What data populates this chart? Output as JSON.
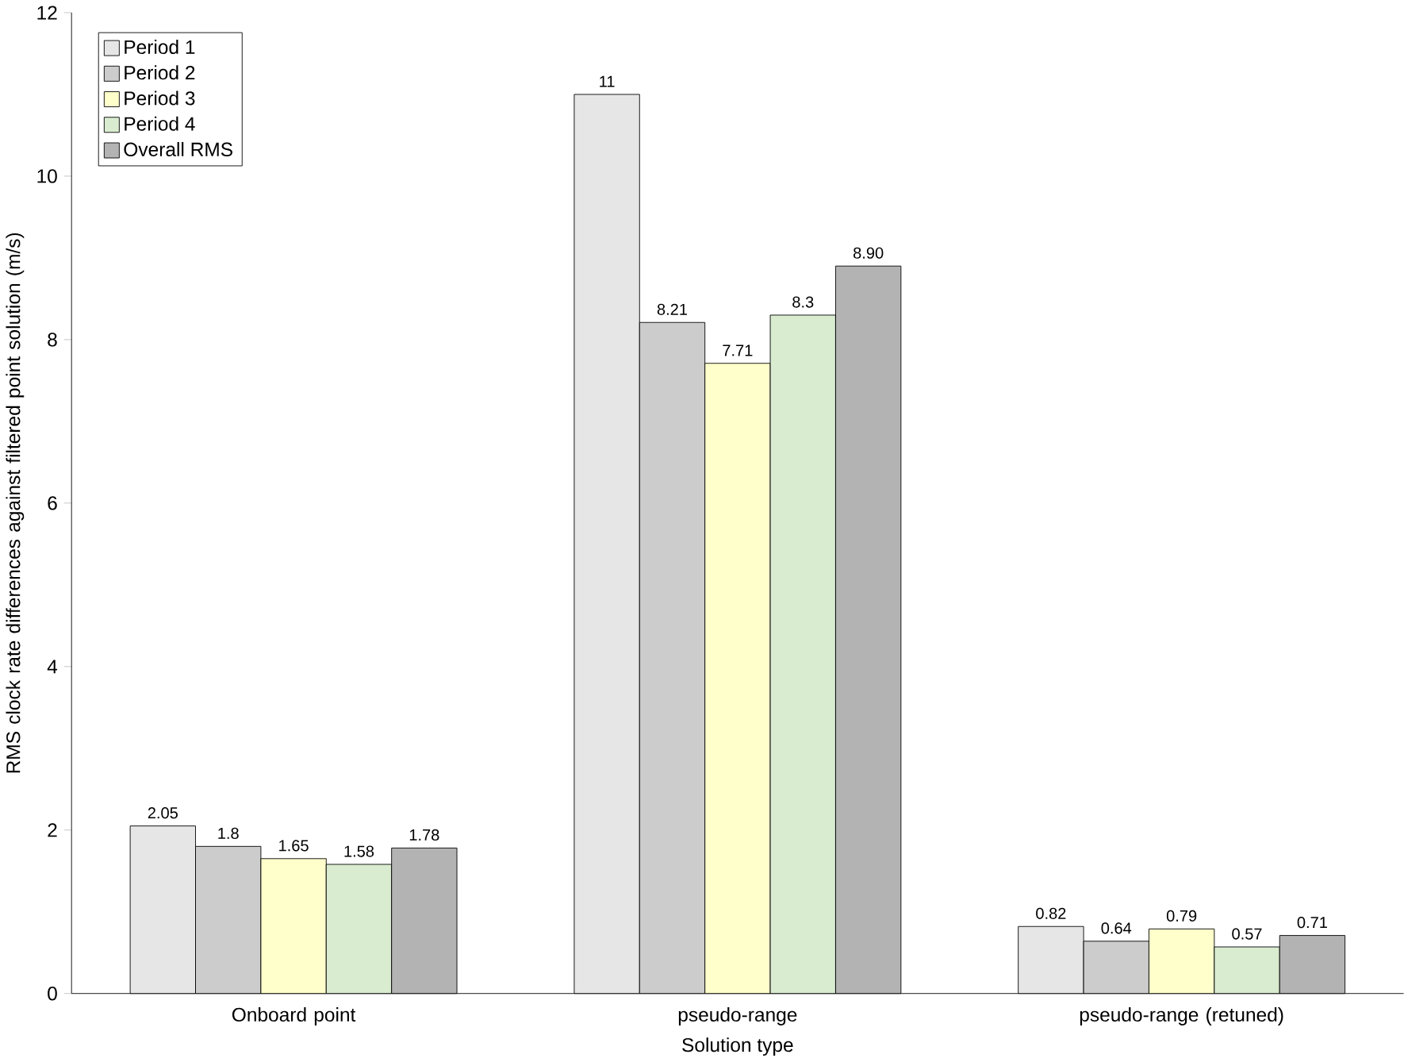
{
  "chart_data": {
    "type": "bar",
    "xlabel": "Solution type",
    "ylabel": "RMS clock rate differences against filtered point solution (m/s)",
    "categories": [
      "Onboard point",
      "pseudo-range",
      "pseudo-range (retuned)"
    ],
    "series": [
      {
        "name": "Period 1",
        "color": "#e6e6e6",
        "values": [
          2.05,
          11,
          0.82
        ],
        "value_labels": [
          "2.05",
          "11",
          "0.82"
        ]
      },
      {
        "name": "Period 2",
        "color": "#cccccc",
        "values": [
          1.8,
          8.21,
          0.64
        ],
        "value_labels": [
          "1.8",
          "8.21",
          "0.64"
        ]
      },
      {
        "name": "Period 3",
        "color": "#ffffcc",
        "values": [
          1.65,
          7.71,
          0.79
        ],
        "value_labels": [
          "1.65",
          "7.71",
          "0.79"
        ]
      },
      {
        "name": "Period 4",
        "color": "#d9ecd0",
        "values": [
          1.58,
          8.3,
          0.57
        ],
        "value_labels": [
          "1.58",
          "8.3",
          "0.57"
        ]
      },
      {
        "name": "Overall RMS",
        "color": "#b3b3b3",
        "values": [
          1.78,
          8.9,
          0.71
        ],
        "value_labels": [
          "1.78",
          "8.90",
          "0.71"
        ]
      }
    ],
    "ylim": [
      0,
      12
    ],
    "yticks": [
      0,
      2,
      4,
      6,
      8,
      10,
      12
    ],
    "legend": "top left",
    "grid": false
  }
}
